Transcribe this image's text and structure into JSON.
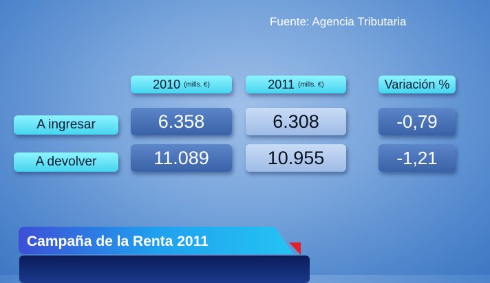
{
  "source": "Fuente: Agencia Tributaria",
  "headers": [
    {
      "year": "2010",
      "unit": "(mills. €)"
    },
    {
      "year": "2011",
      "unit": "(mills. €)"
    },
    {
      "year": "Variación %",
      "unit": ""
    }
  ],
  "rows": [
    {
      "label": "A ingresar",
      "v2010": "6.358",
      "v2011": "6.308",
      "variation": "-0,79"
    },
    {
      "label": "A devolver",
      "v2010": "11.089",
      "v2011": "10.955",
      "variation": "-1,21"
    }
  ],
  "lower_third": {
    "title": "Campaña de la Renta 2011",
    "accent": "#e0202a"
  }
}
